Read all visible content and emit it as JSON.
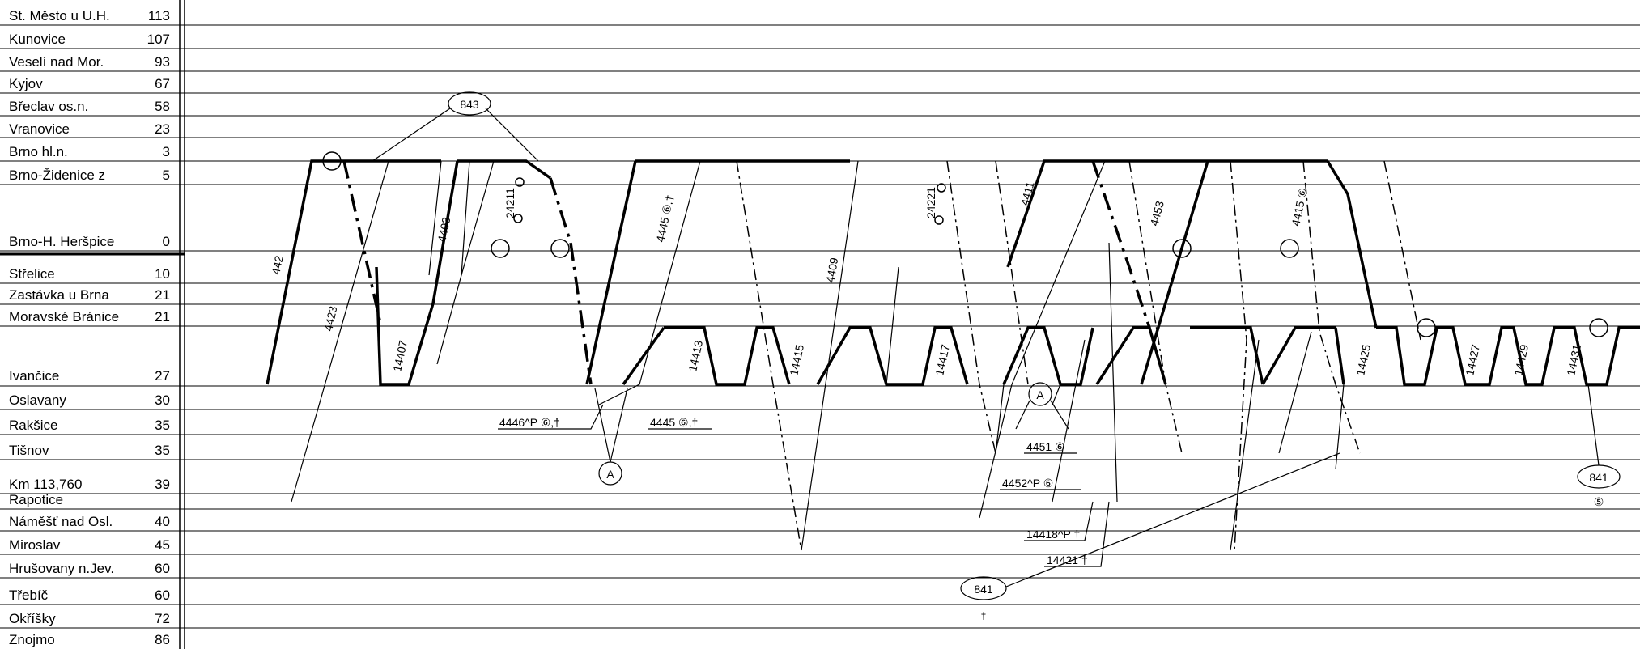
{
  "stations": [
    {
      "name": "St. Město u U.H.",
      "km": "113"
    },
    {
      "name": "Kunovice",
      "km": "107"
    },
    {
      "name": "Veselí nad Mor.",
      "km": "93"
    },
    {
      "name": "Kyjov",
      "km": "67"
    },
    {
      "name": "Břeclav os.n.",
      "km": "58"
    },
    {
      "name": "Vranovice",
      "km": "23"
    },
    {
      "name": "Brno hl.n.",
      "km": "3"
    },
    {
      "name": "Brno-Židenice z",
      "km": "5"
    },
    {
      "name": "Brno-H. Heršpice",
      "km": "0"
    },
    {
      "name": "Střelice",
      "km": "10"
    },
    {
      "name": "Zastávka u Brna",
      "km": "21"
    },
    {
      "name": "Moravské Bránice",
      "km": "21"
    },
    {
      "name": "Ivančice",
      "km": "27"
    },
    {
      "name": "Oslavany",
      "km": "30"
    },
    {
      "name": "Rakšice",
      "km": "35"
    },
    {
      "name": "Tišnov",
      "km": "35"
    },
    {
      "name": "Km 113,760",
      "km": "39"
    },
    {
      "name": "Rapotice",
      "km": ""
    },
    {
      "name": "Náměšť nad Osl.",
      "km": "40"
    },
    {
      "name": "Miroslav",
      "km": "45"
    },
    {
      "name": "Hrušovany n.Jev.",
      "km": "60"
    },
    {
      "name": "Třebíč",
      "km": "60"
    },
    {
      "name": "Okříšky",
      "km": "72"
    },
    {
      "name": "Znojmo",
      "km": "86"
    }
  ],
  "callouts": {
    "c843": "843",
    "c841_bottom": "841",
    "c841_right": "841",
    "a_left": "A",
    "a_mid": "A",
    "dagger_bottom": "†",
    "five_right": "⑤"
  },
  "trains": {
    "t442": "442",
    "t4423": "4423",
    "t4403": "4403",
    "t24211": "24211",
    "t4445": "4445 ⑥,†",
    "t4409": "4409",
    "t24221": "24221",
    "t4411": "4411",
    "t4453": "4453",
    "t4415": "4415 ⑥",
    "t14407": "14407",
    "t14413": "14413",
    "t14415": "14415",
    "t14417": "14417",
    "t14425": "14425",
    "t14427": "14427",
    "t14429": "14429",
    "t14431": "14431",
    "t4446box": "4446^P ⑥,†",
    "t4445box": "4445 ⑥,†",
    "t4451box": "4451 ⑥",
    "t4452box": "4452^P ⑥",
    "t14418box": "14418^P †",
    "t14421box": "14421 †"
  }
}
